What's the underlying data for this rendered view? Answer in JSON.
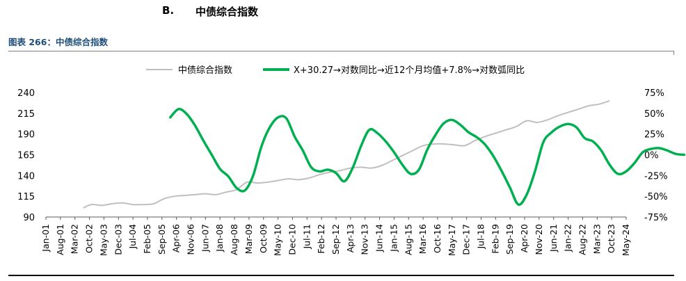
{
  "section": {
    "letter": "B.",
    "title": "中债综合指数"
  },
  "figure": {
    "caption": "图表 266：中债综合指数"
  },
  "colors": {
    "caption": "#1f4e79",
    "index_series": "#bfbfbf",
    "momentum_series": "#00b050",
    "text": "#000000"
  },
  "chart_data": {
    "type": "line",
    "title": "",
    "legend_position": "top",
    "grid": false,
    "x_tick_labels": [
      "Jan-01",
      "Aug-01",
      "Mar-02",
      "Oct-02",
      "May-03",
      "Dec-03",
      "Jul-04",
      "Feb-05",
      "Sep-05",
      "Apr-06",
      "Nov-06",
      "Jun-07",
      "Jan-08",
      "Aug-08",
      "Mar-09",
      "Oct-09",
      "May-10",
      "Dec-10",
      "Jul-11",
      "Feb-12",
      "Sep-12",
      "Apr-13",
      "Nov-13",
      "Jun-14",
      "Jan-15",
      "Aug-15",
      "Mar-16",
      "Oct-16",
      "May-17",
      "Dec-17",
      "Jul-18",
      "Feb-19",
      "Sep-19",
      "Apr-20",
      "Nov-20",
      "Jun-21",
      "Jan-22",
      "Aug-22",
      "Mar-23",
      "Oct-23",
      "May-24"
    ],
    "x_range": [
      "Jan-01",
      "May-24"
    ],
    "left_axis": {
      "ticks": [
        "90",
        "115",
        "140",
        "165",
        "190",
        "215",
        "240"
      ],
      "min": 90,
      "max": 240
    },
    "right_axis": {
      "ticks": [
        "-75%",
        "-50%",
        "-25%",
        "0%",
        "25%",
        "50%",
        "75%"
      ],
      "min": -75,
      "max": 75
    },
    "series": [
      {
        "name": "中债综合指数",
        "axis": "left",
        "points": [
          [
            "Jul-02",
            101
          ],
          [
            "Nov-02",
            105
          ],
          [
            "Apr-03",
            104
          ],
          [
            "Sep-03",
            106
          ],
          [
            "Feb-04",
            107
          ],
          [
            "Jul-04",
            105
          ],
          [
            "Dec-04",
            105
          ],
          [
            "May-05",
            106
          ],
          [
            "Oct-05",
            112
          ],
          [
            "Mar-06",
            115
          ],
          [
            "Aug-06",
            116
          ],
          [
            "Jan-07",
            117
          ],
          [
            "Jun-07",
            118
          ],
          [
            "Nov-07",
            117
          ],
          [
            "Apr-08",
            120
          ],
          [
            "Sep-08",
            123
          ],
          [
            "Feb-09",
            132
          ],
          [
            "Jul-09",
            131
          ],
          [
            "Dec-09",
            132
          ],
          [
            "May-10",
            134
          ],
          [
            "Oct-10",
            136
          ],
          [
            "Mar-11",
            135
          ],
          [
            "Aug-11",
            137
          ],
          [
            "Jan-12",
            141
          ],
          [
            "Jun-12",
            144
          ],
          [
            "Nov-12",
            146
          ],
          [
            "Apr-13",
            149
          ],
          [
            "Sep-13",
            150
          ],
          [
            "Feb-14",
            149
          ],
          [
            "Jul-14",
            152
          ],
          [
            "Dec-14",
            158
          ],
          [
            "May-15",
            164
          ],
          [
            "Oct-15",
            170
          ],
          [
            "Mar-16",
            176
          ],
          [
            "Aug-16",
            178
          ],
          [
            "Jan-17",
            178
          ],
          [
            "Jun-17",
            177
          ],
          [
            "Nov-17",
            176
          ],
          [
            "Apr-18",
            182
          ],
          [
            "Sep-18",
            187
          ],
          [
            "Feb-19",
            191
          ],
          [
            "Jul-19",
            195
          ],
          [
            "Dec-19",
            199
          ],
          [
            "May-20",
            206
          ],
          [
            "Oct-20",
            204
          ],
          [
            "Mar-21",
            207
          ],
          [
            "Aug-21",
            212
          ],
          [
            "Jan-22",
            216
          ],
          [
            "Jun-22",
            220
          ],
          [
            "Nov-22",
            224
          ],
          [
            "Apr-23",
            226
          ],
          [
            "Sep-23",
            230
          ]
        ]
      },
      {
        "name": "X+30.27→对数同比→近12个月均值+7.8%→对数弧同比",
        "axis": "right",
        "points": [
          [
            "Jan-06",
            45
          ],
          [
            "May-06",
            55
          ],
          [
            "Sep-06",
            49
          ],
          [
            "Jan-07",
            35
          ],
          [
            "May-07",
            17
          ],
          [
            "Sep-07",
            0
          ],
          [
            "Jan-08",
            -17
          ],
          [
            "May-08",
            -26
          ],
          [
            "Sep-08",
            -40
          ],
          [
            "Jan-09",
            -43
          ],
          [
            "May-09",
            -25
          ],
          [
            "Sep-09",
            10
          ],
          [
            "Jan-10",
            33
          ],
          [
            "May-10",
            45
          ],
          [
            "Sep-10",
            44
          ],
          [
            "Jan-11",
            22
          ],
          [
            "May-11",
            5
          ],
          [
            "Sep-11",
            -15
          ],
          [
            "Jan-12",
            -20
          ],
          [
            "May-12",
            -18
          ],
          [
            "Sep-12",
            -22
          ],
          [
            "Jan-13",
            -32
          ],
          [
            "May-13",
            -16
          ],
          [
            "Sep-13",
            10
          ],
          [
            "Jan-14",
            30
          ],
          [
            "May-14",
            26
          ],
          [
            "Sep-14",
            16
          ],
          [
            "Jan-15",
            3
          ],
          [
            "May-15",
            -12
          ],
          [
            "Sep-15",
            -23
          ],
          [
            "Jan-16",
            -18
          ],
          [
            "May-16",
            6
          ],
          [
            "Sep-16",
            24
          ],
          [
            "Jan-17",
            38
          ],
          [
            "May-17",
            42
          ],
          [
            "Sep-17",
            36
          ],
          [
            "Jan-18",
            27
          ],
          [
            "May-18",
            21
          ],
          [
            "Sep-18",
            12
          ],
          [
            "Jan-19",
            -2
          ],
          [
            "May-19",
            -20
          ],
          [
            "Sep-19",
            -40
          ],
          [
            "Jan-20",
            -60
          ],
          [
            "May-20",
            -48
          ],
          [
            "Sep-20",
            -20
          ],
          [
            "Jan-21",
            15
          ],
          [
            "May-21",
            27
          ],
          [
            "Sep-21",
            34
          ],
          [
            "Jan-22",
            37
          ],
          [
            "May-22",
            33
          ],
          [
            "Sep-22",
            20
          ],
          [
            "Jan-23",
            16
          ],
          [
            "May-23",
            5
          ],
          [
            "Sep-23",
            -12
          ],
          [
            "Jan-24",
            -23
          ],
          [
            "May-24",
            -20
          ],
          [
            "Sep-24",
            -10
          ],
          [
            "Jan-25",
            3
          ],
          [
            "May-25",
            7
          ],
          [
            "Sep-25",
            8
          ],
          [
            "Jan-26",
            5
          ],
          [
            "May-26",
            1
          ],
          [
            "Sep-26",
            0
          ]
        ]
      }
    ]
  }
}
